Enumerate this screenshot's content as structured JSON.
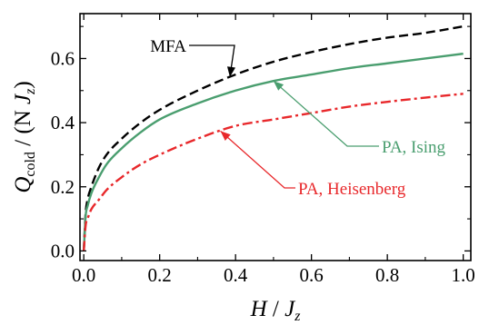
{
  "chart_data": {
    "type": "line",
    "title": "",
    "xlabel": {
      "main": "H",
      "sep": " / ",
      "sym": "J",
      "sub": "z"
    },
    "ylabel": {
      "main": "Q",
      "sub1": "cold",
      "sep": " / (N ",
      "sym": "J",
      "sub2": "z",
      "close": ")"
    },
    "xlim": [
      -0.01,
      1.02
    ],
    "ylim": [
      -0.03,
      0.74
    ],
    "xticks": [
      0.0,
      0.2,
      0.4,
      0.6,
      0.8,
      1.0
    ],
    "xtick_labels": [
      "0.0",
      "0.2",
      "0.4",
      "0.6",
      "0.8",
      "1.0"
    ],
    "yticks": [
      0.0,
      0.2,
      0.4,
      0.6
    ],
    "ytick_labels": [
      "0.0",
      "0.2",
      "0.4",
      "0.6"
    ],
    "grid": false,
    "series": [
      {
        "name": "MFA",
        "color": "#000000",
        "dash": "dashed",
        "x": [
          0.0,
          0.005,
          0.01,
          0.02,
          0.04,
          0.06,
          0.1,
          0.15,
          0.2,
          0.3,
          0.4,
          0.5,
          0.6,
          0.7,
          0.8,
          0.9,
          1.0
        ],
        "y": [
          0.0,
          0.12,
          0.16,
          0.2,
          0.26,
          0.3,
          0.35,
          0.4,
          0.44,
          0.5,
          0.55,
          0.59,
          0.62,
          0.645,
          0.665,
          0.68,
          0.7
        ]
      },
      {
        "name": "PA, Ising",
        "color": "#4a9e6f",
        "dash": "solid",
        "x": [
          0.0,
          0.005,
          0.01,
          0.02,
          0.04,
          0.06,
          0.1,
          0.15,
          0.2,
          0.3,
          0.4,
          0.5,
          0.6,
          0.7,
          0.8,
          0.9,
          1.0
        ],
        "y": [
          0.0,
          0.11,
          0.14,
          0.18,
          0.23,
          0.27,
          0.32,
          0.37,
          0.41,
          0.46,
          0.5,
          0.53,
          0.55,
          0.57,
          0.585,
          0.6,
          0.615
        ]
      },
      {
        "name": "PA, Heisenberg",
        "color": "#e8282b",
        "dash": "dashdot",
        "x": [
          0.0,
          0.005,
          0.01,
          0.02,
          0.04,
          0.06,
          0.1,
          0.15,
          0.2,
          0.3,
          0.4,
          0.5,
          0.6,
          0.7,
          0.8,
          0.9,
          1.0
        ],
        "y": [
          0.0,
          0.08,
          0.1,
          0.13,
          0.16,
          0.19,
          0.23,
          0.27,
          0.3,
          0.35,
          0.39,
          0.41,
          0.43,
          0.45,
          0.465,
          0.478,
          0.49
        ]
      }
    ],
    "annotations": [
      {
        "text": "MFA",
        "series": 0,
        "arrow_to_x": 0.385
      },
      {
        "text": "PA, Ising",
        "series": 1,
        "arrow_to_x": 0.5
      },
      {
        "text": "PA, Heisenberg",
        "series": 2,
        "arrow_to_x": 0.36
      }
    ]
  }
}
